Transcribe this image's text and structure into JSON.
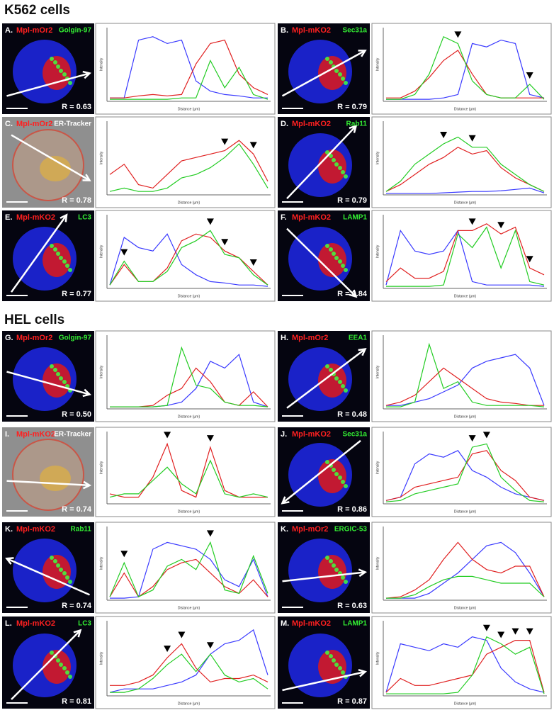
{
  "sections": [
    {
      "title": "K562 cells",
      "panels": [
        {
          "label": "A.",
          "red": "Mpl-mOr2",
          "green": "Golgin-97",
          "r": "R = 0.63",
          "profiles": {
            "blue": [
              5,
              5,
              90,
              95,
              85,
              90,
              30,
              15,
              10,
              8,
              5,
              5
            ],
            "red": [
              5,
              5,
              8,
              10,
              8,
              10,
              55,
              85,
              90,
              40,
              20,
              10
            ],
            "green": [
              3,
              3,
              3,
              3,
              3,
              5,
              5,
              60,
              20,
              50,
              10,
              3
            ]
          }
        },
        {
          "label": "B.",
          "red": "Mpl-mKO2",
          "green": "Sec31a",
          "r": "R = 0.79",
          "profiles": {
            "blue": [
              3,
              3,
              3,
              3,
              5,
              10,
              85,
              80,
              90,
              85,
              10,
              5
            ],
            "red": [
              5,
              5,
              15,
              35,
              60,
              75,
              40,
              10,
              5,
              5,
              5,
              5
            ],
            "green": [
              3,
              3,
              10,
              40,
              95,
              85,
              30,
              10,
              5,
              5,
              25,
              3
            ]
          }
        },
        {
          "label": "C.",
          "red": "Mpl-mOr2",
          "green": "ER-Tracker",
          "r": "R = 0.78",
          "profiles": {
            "red": [
              30,
              45,
              15,
              10,
              30,
              50,
              55,
              60,
              65,
              80,
              60,
              20
            ],
            "green": [
              5,
              10,
              5,
              5,
              10,
              25,
              30,
              40,
              55,
              75,
              45,
              10
            ]
          }
        },
        {
          "label": "D.",
          "red": "Mpl-mKO2",
          "green": "Rab11",
          "r": "R = 0.79",
          "profiles": {
            "blue": [
              2,
              2,
              2,
              2,
              3,
              4,
              5,
              5,
              6,
              8,
              10,
              3
            ],
            "red": [
              5,
              15,
              30,
              45,
              55,
              70,
              60,
              65,
              40,
              25,
              15,
              5
            ],
            "green": [
              5,
              20,
              45,
              60,
              75,
              85,
              70,
              70,
              45,
              30,
              15,
              5
            ]
          }
        },
        {
          "label": "E.",
          "red": "Mpl-mKO2",
          "green": "LC3",
          "r": "R = 0.77",
          "profiles": {
            "blue": [
              5,
              75,
              60,
              55,
              80,
              35,
              20,
              10,
              8,
              5,
              5,
              3
            ],
            "red": [
              5,
              35,
              10,
              10,
              30,
              70,
              80,
              75,
              55,
              45,
              25,
              5
            ],
            "green": [
              5,
              40,
              10,
              10,
              25,
              60,
              70,
              85,
              50,
              45,
              20,
              5
            ]
          }
        },
        {
          "label": "F.",
          "red": "Mpl-mKO2",
          "green": "LAMP1",
          "r": "R = 0.84",
          "profiles": {
            "blue": [
              5,
              85,
              55,
              50,
              55,
              85,
              10,
              5,
              5,
              5,
              5,
              3
            ],
            "red": [
              10,
              30,
              15,
              15,
              25,
              85,
              85,
              95,
              80,
              90,
              30,
              20
            ],
            "green": [
              3,
              3,
              3,
              3,
              5,
              80,
              60,
              90,
              30,
              85,
              10,
              5
            ]
          }
        }
      ]
    },
    {
      "title": "HEL cells",
      "panels": [
        {
          "label": "G.",
          "red": "Mpl-mOr2",
          "green": "Golgin-97",
          "r": "R = 0.50",
          "profiles": {
            "blue": [
              3,
              3,
              3,
              3,
              5,
              10,
              30,
              70,
              60,
              80,
              10,
              3
            ],
            "red": [
              3,
              3,
              3,
              5,
              20,
              30,
              60,
              40,
              10,
              5,
              25,
              3
            ],
            "green": [
              3,
              3,
              3,
              3,
              5,
              90,
              35,
              30,
              10,
              5,
              5,
              3
            ]
          }
        },
        {
          "label": "H.",
          "red": "Mpl-mOr2",
          "green": "EEA1",
          "r": "R = 0.48",
          "profiles": {
            "blue": [
              5,
              5,
              10,
              15,
              25,
              35,
              60,
              70,
              75,
              80,
              60,
              5
            ],
            "red": [
              5,
              10,
              20,
              40,
              60,
              45,
              30,
              15,
              10,
              8,
              5,
              5
            ],
            "green": [
              3,
              3,
              10,
              95,
              30,
              40,
              10,
              5,
              5,
              5,
              5,
              3
            ]
          }
        },
        {
          "label": "I.",
          "red": "Mpl-mKO2",
          "green": "ER-Tracker",
          "r": "R = 0.74",
          "profiles": {
            "red": [
              15,
              10,
              10,
              40,
              90,
              20,
              10,
              85,
              20,
              10,
              10,
              10
            ],
            "green": [
              10,
              15,
              15,
              35,
              55,
              30,
              15,
              65,
              15,
              10,
              15,
              10
            ]
          }
        },
        {
          "label": "J.",
          "red": "Mpl-mKO2",
          "green": "Sec31a",
          "r": "R = 0.86",
          "profiles": {
            "blue": [
              5,
              10,
              60,
              75,
              70,
              80,
              50,
              40,
              25,
              15,
              10,
              5
            ],
            "red": [
              5,
              10,
              25,
              30,
              35,
              40,
              75,
              80,
              50,
              35,
              10,
              5
            ],
            "green": [
              3,
              5,
              15,
              20,
              25,
              30,
              85,
              90,
              40,
              20,
              5,
              3
            ]
          }
        },
        {
          "label": "K.",
          "red": "Mpl-mKO2",
          "green": "Rab11",
          "r": "R = 0.74",
          "profiles": {
            "blue": [
              3,
              3,
              5,
              75,
              85,
              80,
              75,
              60,
              30,
              20,
              60,
              5
            ],
            "red": [
              5,
              40,
              5,
              20,
              45,
              55,
              60,
              40,
              20,
              10,
              30,
              5
            ],
            "green": [
              5,
              55,
              5,
              15,
              50,
              60,
              45,
              85,
              15,
              10,
              65,
              10
            ]
          }
        },
        {
          "label": "K.",
          "red": "Mpl-mOr2",
          "green": "ERGIC-53",
          "r": "R = 0.63",
          "profiles": {
            "blue": [
              3,
              3,
              3,
              10,
              25,
              40,
              60,
              80,
              85,
              70,
              40,
              5
            ],
            "red": [
              3,
              5,
              15,
              30,
              60,
              85,
              60,
              45,
              40,
              50,
              50,
              5
            ],
            "green": [
              3,
              3,
              8,
              20,
              30,
              35,
              35,
              30,
              25,
              25,
              25,
              5
            ]
          }
        },
        {
          "label": "L.",
          "red": "Mpl-mKO2",
          "green": "LC3",
          "r": "R = 0.81",
          "profiles": {
            "blue": [
              5,
              10,
              10,
              10,
              15,
              20,
              30,
              60,
              75,
              80,
              95,
              30
            ],
            "red": [
              15,
              15,
              20,
              30,
              55,
              75,
              40,
              20,
              25,
              25,
              30,
              20
            ],
            "green": [
              5,
              5,
              10,
              25,
              45,
              60,
              35,
              60,
              30,
              20,
              25,
              10
            ]
          }
        },
        {
          "label": "M.",
          "red": "Mpl-mKO2",
          "green": "LAMP1",
          "r": "R = 0.87",
          "profiles": {
            "blue": [
              5,
              75,
              70,
              65,
              75,
              70,
              85,
              80,
              40,
              20,
              10,
              5
            ],
            "red": [
              5,
              25,
              15,
              15,
              20,
              25,
              30,
              60,
              70,
              80,
              80,
              5
            ],
            "green": [
              3,
              3,
              3,
              3,
              3,
              5,
              30,
              85,
              75,
              60,
              70,
              3
            ]
          }
        }
      ]
    }
  ],
  "x_label": "Distance (µm)",
  "y_label": "Intensity"
}
